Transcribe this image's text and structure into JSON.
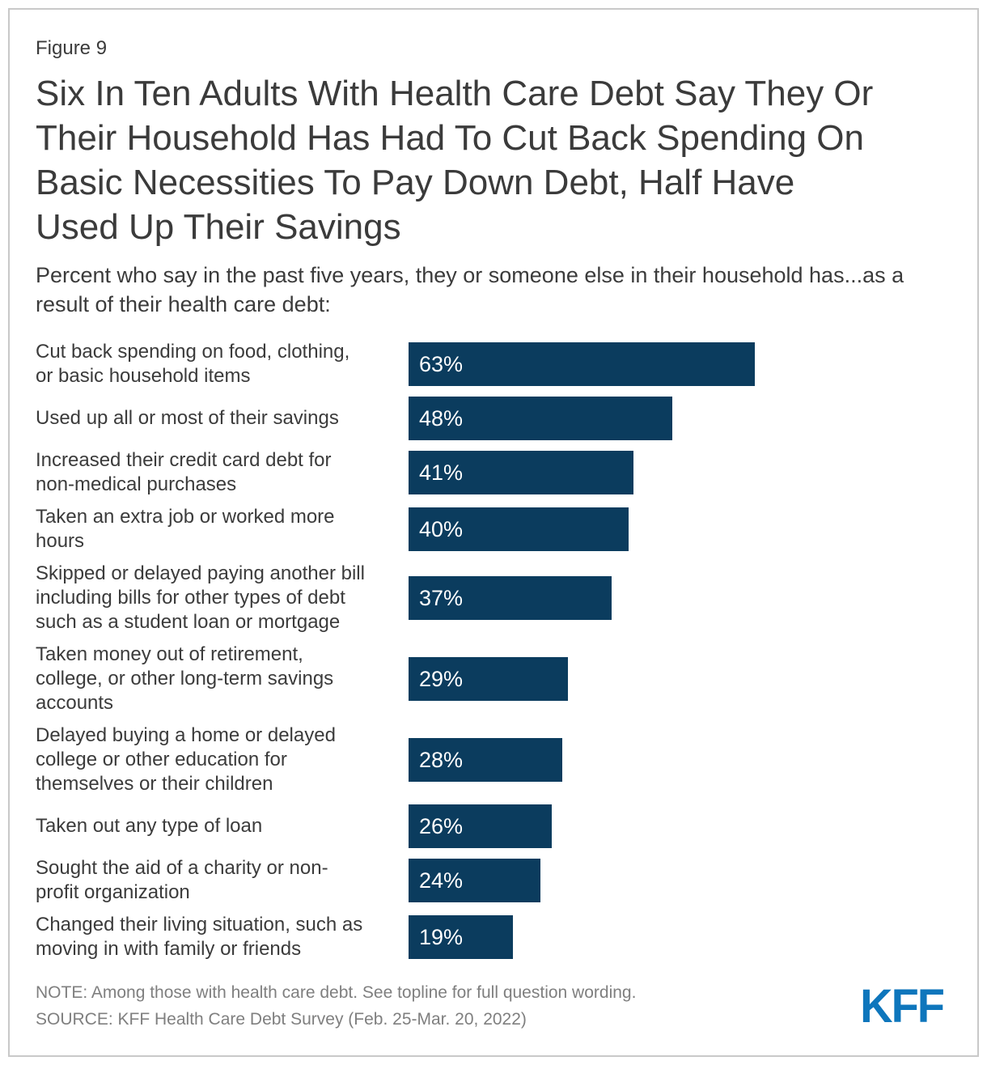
{
  "figure_label": "Figure 9",
  "title": "Six In Ten Adults With Health Care Debt Say They Or\nTheir Household Has Had To Cut Back Spending On\nBasic Necessities To Pay Down Debt, Half Have\nUsed Up Their Savings",
  "subtitle": "Percent who say in the past five years, they or someone else in their household has...as a\nresult of their health care debt:",
  "note": "NOTE: Among those with health care debt. See topline for full question wording.",
  "source": "SOURCE: KFF Health Care Debt Survey (Feb. 25-Mar. 20, 2022)",
  "logo_text": "KFF",
  "colors": {
    "bar": "#0B3C5E",
    "text": "#3B3B3B",
    "muted": "#7F7F7F",
    "frame_border": "#C9C9C9",
    "value_label": "#FFFFFF",
    "logo_blue": "#0E76BC"
  },
  "chart_data": {
    "type": "bar",
    "orientation": "horizontal",
    "unit": "%",
    "xlim": [
      0,
      100
    ],
    "grid": false,
    "legend": false,
    "title": "Six In Ten Adults With Health Care Debt Say They Or Their Household Has Had To Cut Back Spending On Basic Necessities To Pay Down Debt, Half Have Used Up Their Savings",
    "xlabel": "",
    "ylabel": "",
    "categories": [
      "Cut back spending on food, clothing,\nor basic household items",
      "Used up all or most of their savings",
      "Increased their credit card debt for\nnon-medical purchases",
      "Taken an extra job or worked more\nhours",
      "Skipped or delayed paying another bill\nincluding bills for other types of debt\nsuch as a student loan or mortgage",
      "Taken money out of retirement,\ncollege, or other long-term savings\naccounts",
      "Delayed buying a home or delayed\ncollege or other education for\nthemselves or their children",
      "Taken out any type of loan",
      "Sought the aid of a charity or non-\nprofit organization",
      "Changed their living situation, such as\nmoving in with family or friends"
    ],
    "values": [
      63,
      48,
      41,
      40,
      37,
      29,
      28,
      26,
      24,
      19
    ],
    "value_labels": [
      "63%",
      "48%",
      "41%",
      "40%",
      "37%",
      "29%",
      "28%",
      "26%",
      "24%",
      "19%"
    ]
  }
}
